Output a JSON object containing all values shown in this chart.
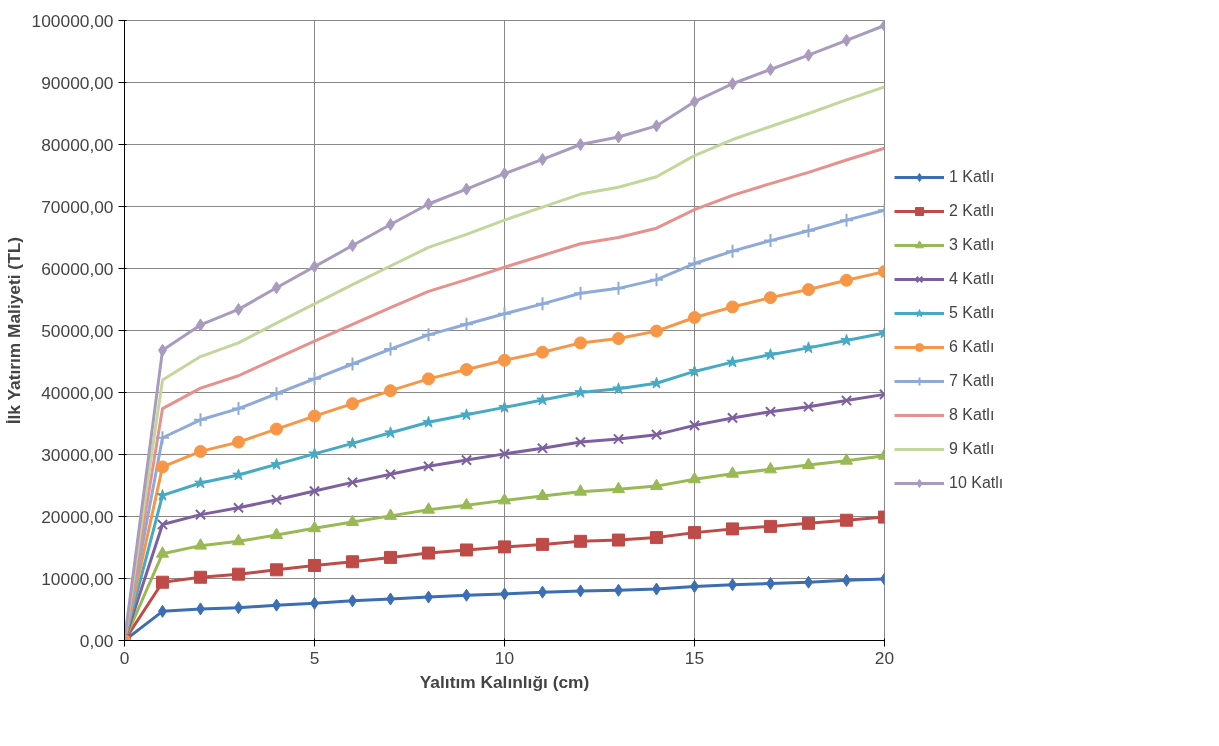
{
  "chart_data": {
    "type": "line",
    "xlabel": "Yalıtım Kalınlığı (cm)",
    "ylabel": "İlk Yatırım Maliyeti (TL)",
    "x": [
      0,
      1,
      2,
      3,
      4,
      5,
      6,
      7,
      8,
      9,
      10,
      11,
      12,
      13,
      14,
      15,
      16,
      17,
      18,
      19,
      20
    ],
    "xlim": [
      0,
      20
    ],
    "xticks": [
      0,
      5,
      10,
      15,
      20
    ],
    "ylim": [
      0,
      100000
    ],
    "yticks": [
      {
        "value": 0,
        "label": "0,00"
      },
      {
        "value": 10000,
        "label": "10000,00"
      },
      {
        "value": 20000,
        "label": "20000,00"
      },
      {
        "value": 30000,
        "label": "30000,00"
      },
      {
        "value": 40000,
        "label": "40000,00"
      },
      {
        "value": 50000,
        "label": "50000,00"
      },
      {
        "value": 60000,
        "label": "60000,00"
      },
      {
        "value": 70000,
        "label": "70000,00"
      },
      {
        "value": 80000,
        "label": "80000,00"
      },
      {
        "value": 90000,
        "label": "90000,00"
      },
      {
        "value": 100000,
        "label": "100000,00"
      }
    ],
    "grid": true,
    "legend": "right",
    "line_style": "solid",
    "series": [
      {
        "name": "1 Katlı",
        "color": "#3c6eb4",
        "marker": "diamond",
        "values": [
          0,
          4700,
          5100,
          5300,
          5700,
          6000,
          6400,
          6700,
          7000,
          7300,
          7500,
          7800,
          8000,
          8100,
          8300,
          8700,
          9000,
          9200,
          9400,
          9700,
          9900
        ]
      },
      {
        "name": "2 Katlı",
        "color": "#be4b48",
        "marker": "square",
        "values": [
          0,
          9400,
          10200,
          10700,
          11400,
          12100,
          12700,
          13400,
          14100,
          14600,
          15100,
          15500,
          16000,
          16200,
          16600,
          17400,
          18000,
          18400,
          18900,
          19400,
          19900
        ]
      },
      {
        "name": "3 Katlı",
        "color": "#98b954",
        "marker": "triangle",
        "values": [
          0,
          14000,
          15300,
          16000,
          17000,
          18100,
          19100,
          20100,
          21100,
          21800,
          22600,
          23300,
          24000,
          24400,
          24900,
          26000,
          26900,
          27600,
          28300,
          29000,
          29800
        ]
      },
      {
        "name": "4 Katlı",
        "color": "#7d60a0",
        "marker": "x",
        "values": [
          0,
          18700,
          20300,
          21400,
          22700,
          24100,
          25500,
          26800,
          28100,
          29100,
          30100,
          31000,
          32000,
          32500,
          33200,
          34700,
          35900,
          36900,
          37700,
          38700,
          39700
        ]
      },
      {
        "name": "5 Katlı",
        "color": "#46aac5",
        "marker": "star",
        "values": [
          0,
          23400,
          25400,
          26700,
          28400,
          30100,
          31800,
          33500,
          35200,
          36400,
          37600,
          38800,
          40000,
          40600,
          41500,
          43400,
          44900,
          46100,
          47200,
          48400,
          49600
        ]
      },
      {
        "name": "6 Katlı",
        "color": "#f79646",
        "marker": "circle",
        "values": [
          0,
          28000,
          30500,
          32000,
          34100,
          36200,
          38200,
          40300,
          42200,
          43700,
          45200,
          46500,
          48000,
          48700,
          49900,
          52100,
          53800,
          55300,
          56600,
          58100,
          59500
        ]
      },
      {
        "name": "7 Katlı",
        "color": "#8eaad9",
        "marker": "cross",
        "values": [
          0,
          32700,
          35600,
          37400,
          39800,
          42200,
          44600,
          47000,
          49300,
          51000,
          52700,
          54300,
          56000,
          56800,
          58200,
          60800,
          62800,
          64500,
          66100,
          67800,
          69400
        ]
      },
      {
        "name": "8 Katlı",
        "color": "#e6918e",
        "marker": "none",
        "values": [
          0,
          37400,
          40700,
          42700,
          45500,
          48300,
          51000,
          53700,
          56300,
          58200,
          60200,
          62100,
          64000,
          65000,
          66500,
          69500,
          71800,
          73700,
          75500,
          77500,
          79400
        ]
      },
      {
        "name": "9 Katlı",
        "color": "#c3d69b",
        "marker": "none",
        "values": [
          0,
          42000,
          45800,
          48000,
          51200,
          54300,
          57400,
          60400,
          63400,
          65500,
          67800,
          69900,
          72000,
          73100,
          74800,
          78200,
          80800,
          82900,
          85000,
          87200,
          89300
        ]
      },
      {
        "name": "10 Katlı",
        "color": "#a99bbd",
        "marker": "diamond",
        "values": [
          0,
          46800,
          50900,
          53400,
          56900,
          60300,
          63700,
          67100,
          70400,
          72800,
          75300,
          77600,
          80000,
          81200,
          83000,
          86900,
          89800,
          92100,
          94400,
          96800,
          99200
        ]
      }
    ]
  }
}
